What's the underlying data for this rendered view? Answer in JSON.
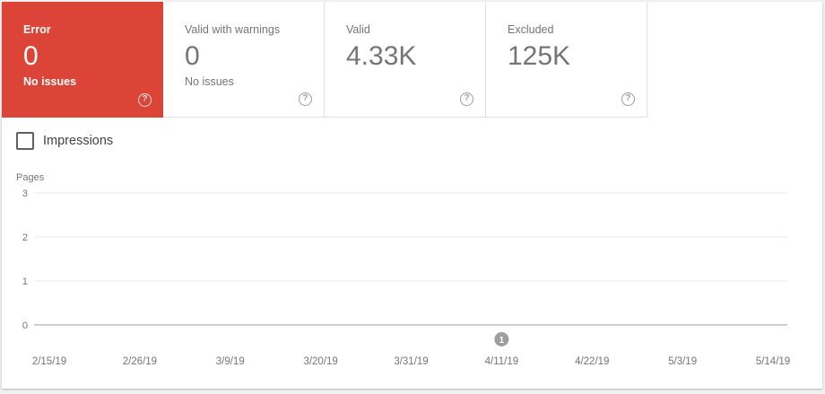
{
  "tiles": [
    {
      "label": "Error",
      "value": "0",
      "sub": "No issues",
      "active": true
    },
    {
      "label": "Valid with warnings",
      "value": "0",
      "sub": "No issues",
      "active": false
    },
    {
      "label": "Valid",
      "value": "4.33K",
      "sub": "",
      "active": false
    },
    {
      "label": "Excluded",
      "value": "125K",
      "sub": "",
      "active": false
    }
  ],
  "help_icon_glyph": "?",
  "impressions_checkbox": {
    "label": "Impressions",
    "checked": false
  },
  "colors": {
    "error": "#db4437",
    "muted_text": "#757575",
    "grid": "#e8e8e8",
    "axis": "#9e9e9e",
    "annotation": "#9e9e9e"
  },
  "chart_data": {
    "type": "line",
    "ylabel": "Pages",
    "ylim": [
      0,
      3
    ],
    "yticks": [
      "3",
      "2",
      "1",
      "0"
    ],
    "categories": [
      "2/15/19",
      "2/26/19",
      "3/9/19",
      "3/20/19",
      "3/31/19",
      "4/11/19",
      "4/22/19",
      "5/3/19",
      "5/14/19"
    ],
    "series": [
      {
        "values": [
          0,
          0,
          0,
          0,
          0,
          0,
          0,
          0,
          0
        ]
      }
    ],
    "annotations": [
      {
        "label": "1",
        "x": "4/11/19"
      }
    ],
    "grid": true
  }
}
